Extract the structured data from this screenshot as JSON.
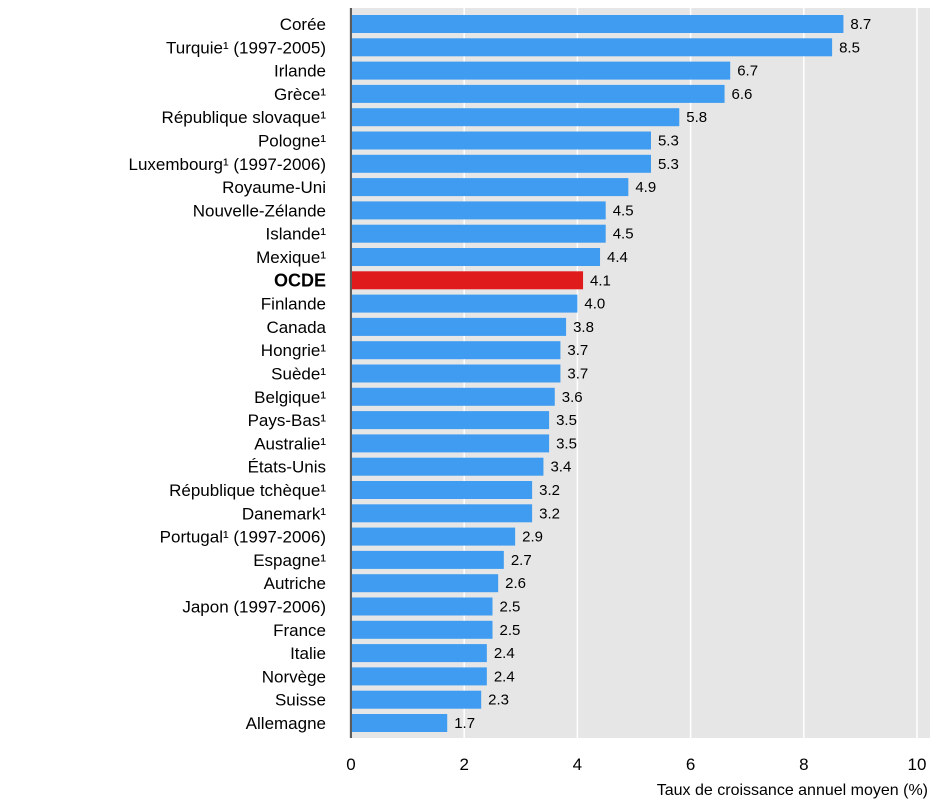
{
  "colors": {
    "bar": "#3f9cf0",
    "highlight_bar": "#e01b1b",
    "plot_background": "#e6e6e6",
    "grid": "#ffffff"
  },
  "chart_data": {
    "type": "bar",
    "orientation": "horizontal",
    "title": "",
    "xlabel": "Taux de croissance annuel moyen (%)",
    "ylabel": "",
    "xlim": [
      0,
      10
    ],
    "xticks": [
      "0",
      "2",
      "4",
      "6",
      "8",
      "10"
    ],
    "grid": true,
    "highlight_category": "OCDE",
    "categories": [
      "Corée",
      "Turquie¹ (1997-2005)",
      "Irlande",
      "Grèce¹",
      "République slovaque¹",
      "Pologne¹",
      "Luxembourg¹ (1997-2006)",
      "Royaume-Uni",
      "Nouvelle-Zélande",
      "Islande¹",
      "Mexique¹",
      "OCDE",
      "Finlande",
      "Canada",
      "Hongrie¹",
      "Suède¹",
      "Belgique¹",
      "Pays-Bas¹",
      "Australie¹",
      "États-Unis",
      "République tchèque¹",
      "Danemark¹",
      "Portugal¹ (1997-2006)",
      "Espagne¹",
      "Autriche",
      "Japon (1997-2006)",
      "France",
      "Italie",
      "Norvège",
      "Suisse",
      "Allemagne"
    ],
    "values": [
      8.7,
      8.5,
      6.7,
      6.6,
      5.8,
      5.3,
      5.3,
      4.9,
      4.5,
      4.5,
      4.4,
      4.1,
      4.0,
      3.8,
      3.7,
      3.7,
      3.6,
      3.5,
      3.5,
      3.4,
      3.2,
      3.2,
      2.9,
      2.7,
      2.6,
      2.5,
      2.5,
      2.4,
      2.4,
      2.3,
      1.7
    ],
    "value_labels": [
      "8.7",
      "8.5",
      "6.7",
      "6.6",
      "5.8",
      "5.3",
      "5.3",
      "4.9",
      "4.5",
      "4.5",
      "4.4",
      "4.1",
      "4.0",
      "3.8",
      "3.7",
      "3.7",
      "3.6",
      "3.5",
      "3.5",
      "3.4",
      "3.2",
      "3.2",
      "2.9",
      "2.7",
      "2.6",
      "2.5",
      "2.5",
      "2.4",
      "2.4",
      "2.3",
      "1.7"
    ]
  }
}
